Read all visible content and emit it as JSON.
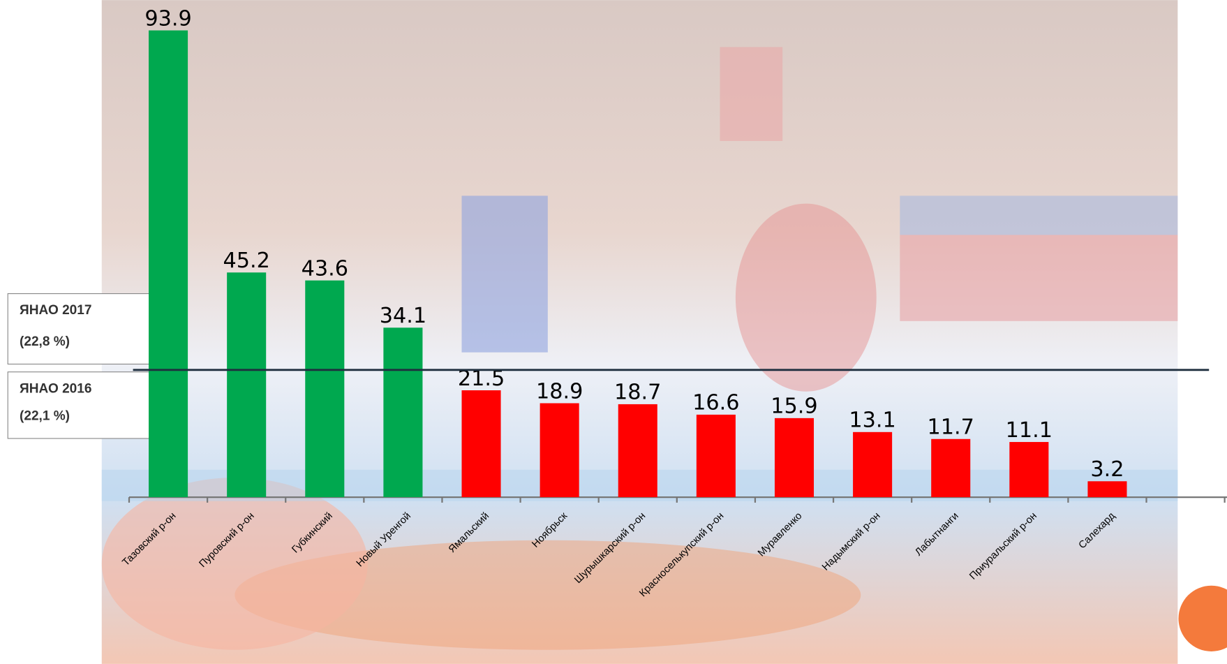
{
  "chart_data": {
    "type": "bar",
    "categories": [
      "Тазовский р-он",
      "Пуровский р-он",
      "Губкинский",
      "Новый Уренгой",
      "Ямальский",
      "Ноябрьск",
      "Шурышкарский р-он",
      "Красноселькупский р-он",
      "Муравленко",
      "Надымский р-он",
      "Лабытнанги",
      "Приуральский р-он",
      "Салехард"
    ],
    "values": [
      93.9,
      45.2,
      43.6,
      34.1,
      21.5,
      18.9,
      18.7,
      16.6,
      15.9,
      13.1,
      11.7,
      11.1,
      3.2
    ],
    "colors": [
      "#00a84f",
      "#00a84f",
      "#00a84f",
      "#00a84f",
      "#ff0000",
      "#ff0000",
      "#ff0000",
      "#ff0000",
      "#ff0000",
      "#ff0000",
      "#ff0000",
      "#ff0000",
      "#ff0000"
    ],
    "ylim": [
      0,
      100
    ],
    "reference_line": 25.6,
    "annotations": [
      [
        "ЯНАО 2017",
        "(22,8 %)"
      ],
      [
        "ЯНАО 2016",
        "(22,1 %)"
      ]
    ]
  }
}
